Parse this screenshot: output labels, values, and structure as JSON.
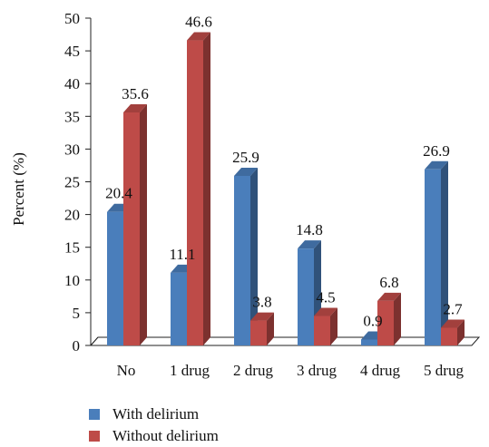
{
  "chart_data": {
    "type": "bar",
    "categories": [
      "No",
      "1 drug",
      "2 drug",
      "3 drug",
      "4 drug",
      "5 drug"
    ],
    "series": [
      {
        "name": "With delirium",
        "values": [
          20.4,
          11.1,
          25.9,
          14.8,
          0.9,
          26.9
        ],
        "labels": [
          "20.4",
          "11.1",
          "25.9",
          "14.8",
          "0.9",
          "26.9"
        ],
        "color": "#4a7ebb"
      },
      {
        "name": "Without delirium",
        "values": [
          35.6,
          46.6,
          3.8,
          4.5,
          6.8,
          2.7
        ],
        "labels": [
          "35.6",
          "46.6",
          "3.8",
          "4.5",
          "6.8",
          "2.7"
        ],
        "color": "#be4b48"
      }
    ],
    "ylabel": "Percent (%)",
    "ylim": [
      0,
      50
    ],
    "yticks": [
      "0",
      "5",
      "10",
      "15",
      "20",
      "25",
      "30",
      "35",
      "40",
      "45",
      "50"
    ],
    "grid": false,
    "style": "3d-clustered-bar",
    "legend_position": "bottom-left"
  }
}
